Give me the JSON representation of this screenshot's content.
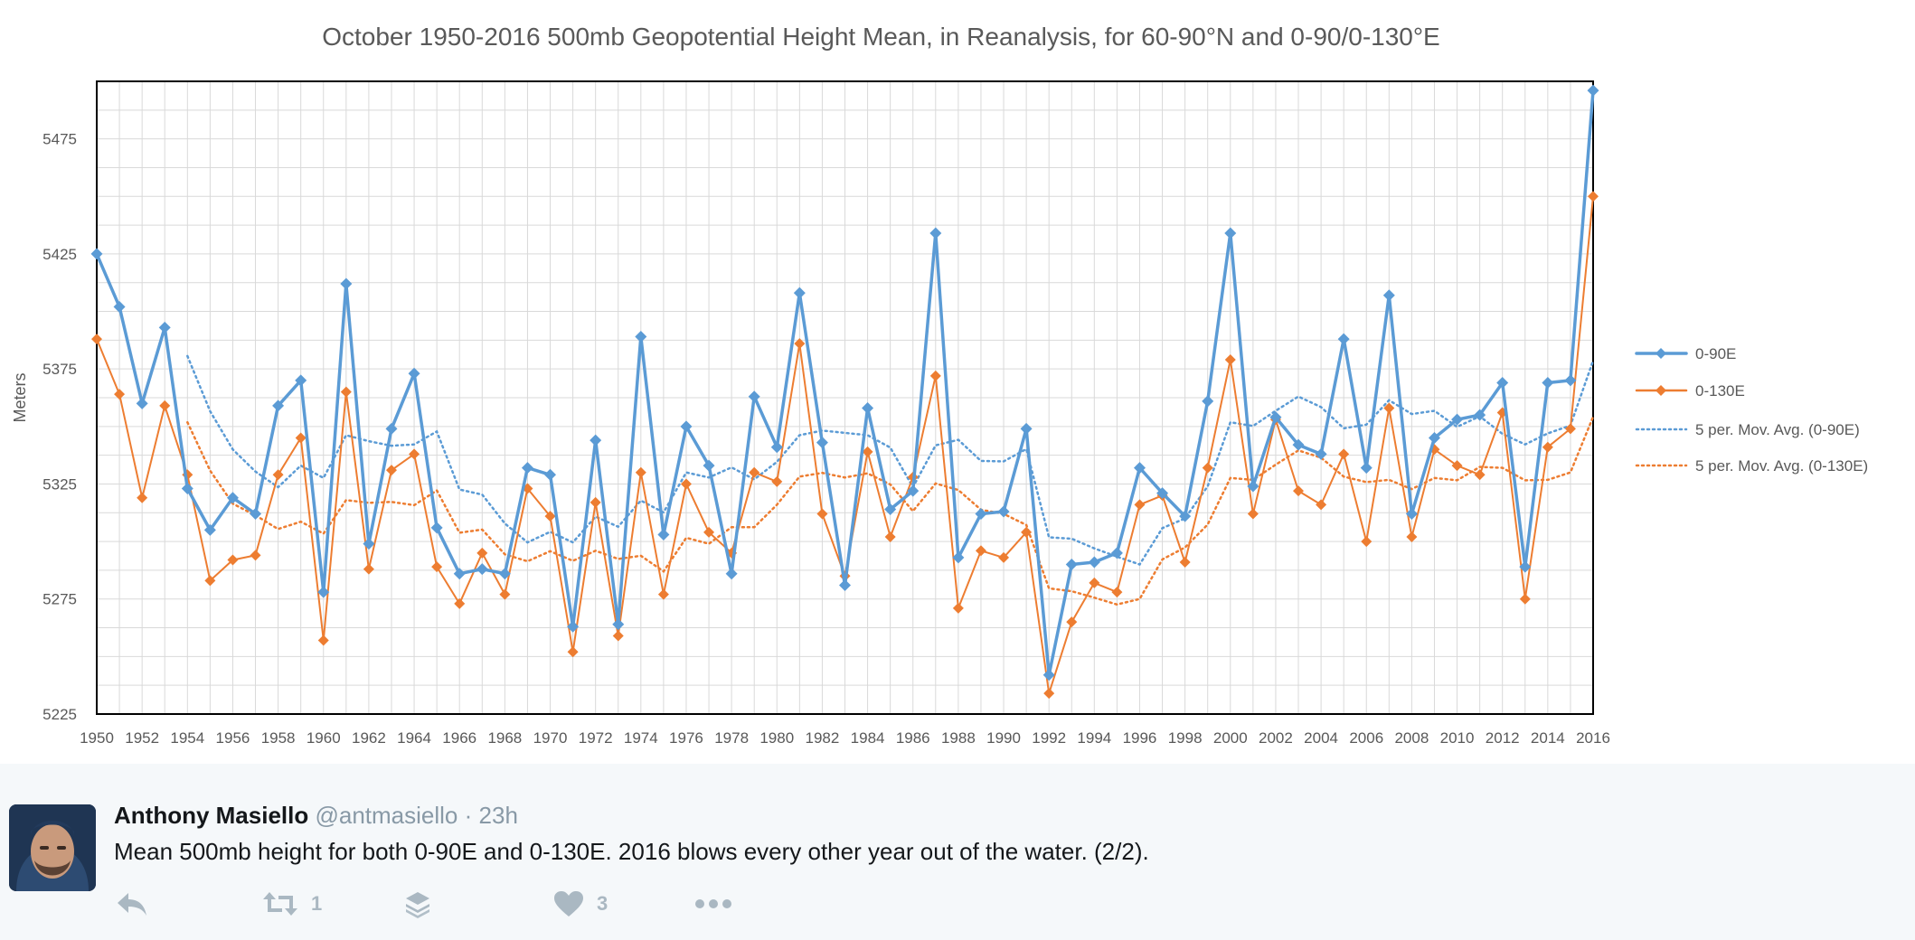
{
  "chart_data": {
    "type": "line",
    "title": "October 1950-2016 500mb Geopotential Height Mean, in Reanalysis, for 60-90°N and 0-90/0-130°E",
    "xlabel": "",
    "ylabel": "Meters",
    "x": [
      1950,
      1951,
      1952,
      1953,
      1954,
      1955,
      1956,
      1957,
      1958,
      1959,
      1960,
      1961,
      1962,
      1963,
      1964,
      1965,
      1966,
      1967,
      1968,
      1969,
      1970,
      1971,
      1972,
      1973,
      1974,
      1975,
      1976,
      1977,
      1978,
      1979,
      1980,
      1981,
      1982,
      1983,
      1984,
      1985,
      1986,
      1987,
      1988,
      1989,
      1990,
      1991,
      1992,
      1993,
      1994,
      1995,
      1996,
      1997,
      1998,
      1999,
      2000,
      2001,
      2002,
      2003,
      2004,
      2005,
      2006,
      2007,
      2008,
      2009,
      2010,
      2011,
      2012,
      2013,
      2014,
      2015,
      2016
    ],
    "xticks": [
      "1950",
      "1952",
      "1954",
      "1956",
      "1958",
      "1960",
      "1962",
      "1964",
      "1966",
      "1968",
      "1970",
      "1972",
      "1974",
      "1976",
      "1978",
      "1980",
      "1982",
      "1984",
      "1986",
      "1988",
      "1990",
      "1992",
      "1994",
      "1996",
      "1998",
      "2000",
      "2002",
      "2004",
      "2006",
      "2008",
      "2010",
      "2012",
      "2014",
      "2016"
    ],
    "yticks": [
      "5225",
      "5275",
      "5325",
      "5375",
      "5425",
      "5475"
    ],
    "ylim": [
      5225,
      5500
    ],
    "grid": true,
    "legend_position": "right",
    "series": [
      {
        "name": "0-90E",
        "color": "#5b9bd5",
        "style": "line-markers",
        "values": [
          5425,
          5402,
          5360,
          5393,
          5323,
          5305,
          5319,
          5312,
          5359,
          5370,
          5278,
          5412,
          5299,
          5349,
          5373,
          5306,
          5286,
          5288,
          5286,
          5332,
          5329,
          5263,
          5344,
          5264,
          5389,
          5303,
          5350,
          5333,
          5286,
          5363,
          5341,
          5408,
          5343,
          5281,
          5358,
          5314,
          5322,
          5434,
          5293,
          5312,
          5313,
          5349,
          5242,
          5290,
          5291,
          5295,
          5332,
          5321,
          5311,
          5361,
          5434,
          5324,
          5354,
          5342,
          5338,
          5388,
          5332,
          5407,
          5312,
          5345,
          5353,
          5355,
          5369,
          5289,
          5369,
          5370,
          5496
        ]
      },
      {
        "name": "0-130E",
        "color": "#ed7d31",
        "style": "line-markers",
        "values": [
          5388,
          5364,
          5319,
          5359,
          5329,
          5283,
          5292,
          5294,
          5329,
          5345,
          5257,
          5365,
          5288,
          5331,
          5338,
          5289,
          5273,
          5295,
          5277,
          5323,
          5311,
          5252,
          5317,
          5259,
          5330,
          5277,
          5325,
          5304,
          5295,
          5330,
          5326,
          5386,
          5312,
          5285,
          5339,
          5302,
          5328,
          5372,
          5271,
          5296,
          5293,
          5304,
          5234,
          5265,
          5282,
          5278,
          5316,
          5320,
          5291,
          5332,
          5379,
          5312,
          5353,
          5322,
          5316,
          5338,
          5300,
          5358,
          5302,
          5340,
          5333,
          5329,
          5356,
          5275,
          5341,
          5349,
          5450
        ]
      },
      {
        "name": "5 per. Mov. Avg. (0-90E)",
        "color": "#5b9bd5",
        "style": "dotted"
      },
      {
        "name": "5 per. Mov. Avg. (0-130E)",
        "color": "#ed7d31",
        "style": "dotted"
      }
    ]
  },
  "tweet": {
    "name": "Anthony Masiello",
    "handle": "@antmasiello",
    "separator": "·",
    "time": "23h",
    "text": "Mean 500mb height for both 0-90E and 0-130E. 2016 blows every other year out of the water. (2/2).",
    "retweet_count": "1",
    "like_count": "3",
    "icons": [
      "reply-icon",
      "retweet-icon",
      "stack-icon",
      "heart-icon",
      "more-icon"
    ],
    "colors": {
      "background": "#f5f8fa",
      "text": "#14171a",
      "muted": "#8899a6",
      "icon": "#aab8c2"
    }
  }
}
